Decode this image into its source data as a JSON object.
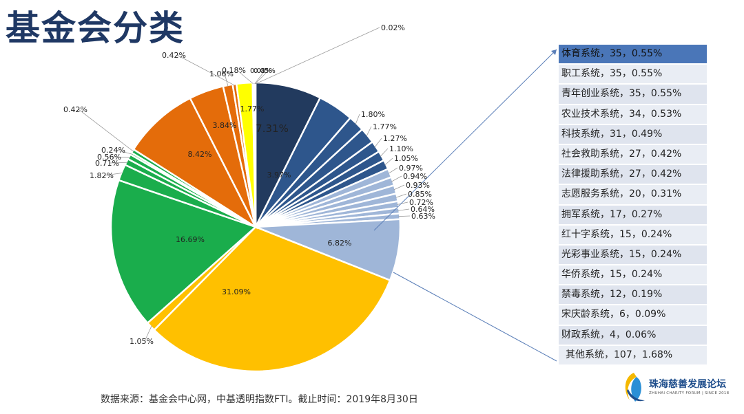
{
  "title": "基金会分类",
  "source": "数据来源：基金会中心网，中基透明指数FTI。截止时间：2019年8月30日",
  "logo": {
    "name": "珠海慈善发展论坛",
    "subtitle": "ZHUHAI CHARITY FORUM | SINCE 2018"
  },
  "legend_rows": [
    "体育系统，35，0.55%",
    "职工系统，35，0.55%",
    "青年创业系统，35，0.55%",
    "农业技术系统，34，0.53%",
    "科技系统，31，0.49%",
    "社会救助系统，27，0.42%",
    "法律援助系统，27，0.42%",
    "志愿服务系统，20，0.31%",
    "拥军系统，17，0.27%",
    "红十字系统，15，0.24%",
    "光彩事业系统，15，0.24%",
    "华侨系统，15，0.24%",
    "禁毒系统，12，0.19%",
    "宋庆龄系统，6，0.09%",
    "财政系统，4，0.06%",
    "其他系统，107，1.68%"
  ],
  "chart_data": {
    "type": "pie",
    "title": "",
    "values": [
      7.31,
      3.97,
      1.8,
      1.77,
      1.27,
      1.1,
      1.05,
      0.97,
      0.94,
      0.93,
      0.85,
      0.72,
      0.64,
      0.63,
      6.82,
      31.09,
      1.05,
      16.69,
      1.82,
      0.71,
      0.56,
      0.24,
      0.42,
      8.42,
      3.84,
      1.06,
      0.42,
      1.77,
      0.18,
      0.08,
      0.05,
      0.02
    ],
    "labels": [
      "7.31%",
      "3.97%",
      "1.80%",
      "1.77%",
      "1.27%",
      "1.10%",
      "1.05%",
      "0.97%",
      "0.94%",
      "0.93%",
      "0.85%",
      "0.72%",
      "0.64%",
      "0.63%",
      "6.82%",
      "31.09%",
      "1.05%",
      "16.69%",
      "1.82%",
      "0.71%",
      "0.56%",
      "0.24%",
      "0.42%",
      "8.42%",
      "3.84%",
      "1.06%",
      "0.42%",
      "1.77%",
      "0.18%",
      "0.08%",
      "0.05%",
      "0.02%"
    ],
    "colors": [
      "#223a5e",
      "#2e568c",
      "#2e568c",
      "#2e568c",
      "#2e568c",
      "#2e568c",
      "#2e568c",
      "#9fb6d8",
      "#9fb6d8",
      "#9fb6d8",
      "#9fb6d8",
      "#9fb6d8",
      "#9fb6d8",
      "#9fb6d8",
      "#9fb6d8",
      "#ffc000",
      "#ffc000",
      "#1aad4c",
      "#1aad4c",
      "#1aad4c",
      "#1aad4c",
      "#1aad4c",
      "#1aad4c",
      "#e46c0a",
      "#e46c0a",
      "#e46c0a",
      "#e46c0a",
      "#ffff00",
      "#e8e8e8",
      "#e8e8e8",
      "#e8e8e8",
      "#e8e8e8"
    ],
    "legend": "right"
  }
}
